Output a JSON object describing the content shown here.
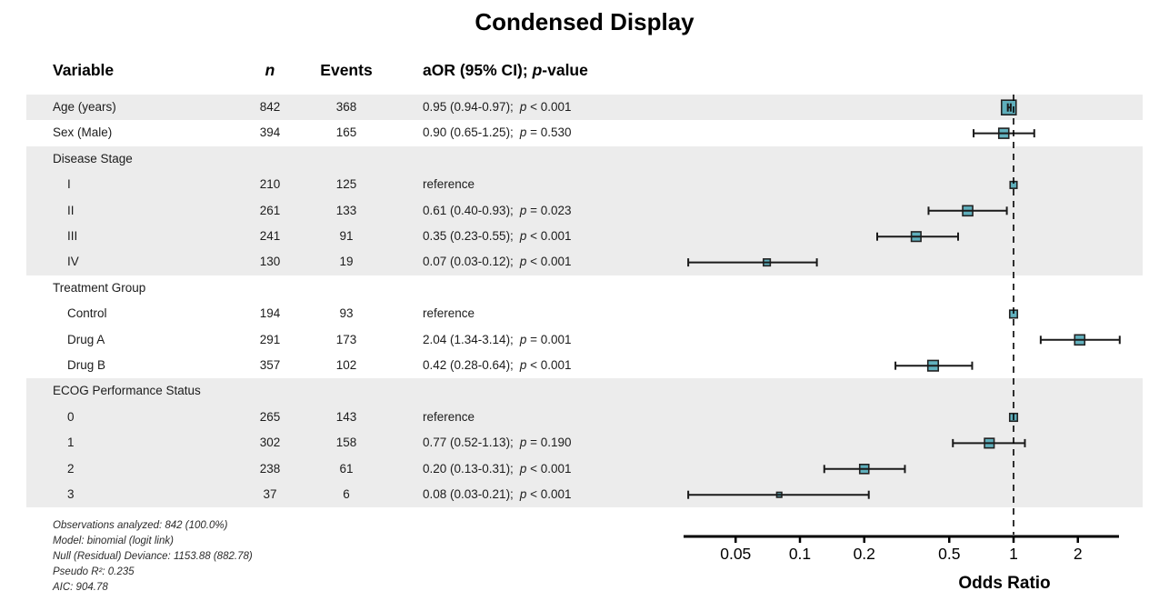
{
  "title": "Condensed Display",
  "header": {
    "variable": "Variable",
    "n": "n",
    "events": "Events",
    "estimate_prefix": "aOR (95% CI); ",
    "estimate_p": "p",
    "estimate_suffix": "-value"
  },
  "axis_label": "Odds Ratio",
  "footnotes": [
    "Observations analyzed: 842 (100.0%)",
    "Model: binomial (logit link)",
    "Null (Residual) Deviance: 1153.88 (882.78)",
    "Pseudo R²: 0.235",
    "AIC: 904.78"
  ],
  "colors": {
    "marker_fill": "#47a4b4",
    "marker_stroke": "#222222",
    "ci_line": "#1a1a1a",
    "band": "#ececec",
    "reference_line": "#000000",
    "axis_line": "#000000"
  },
  "chart_data": {
    "type": "forest",
    "xlabel": "Odds Ratio",
    "x_scale": "log10",
    "xlim": [
      0.028,
      3.3
    ],
    "x_ticks": [
      0.05,
      0.1,
      0.2,
      0.5,
      1,
      2
    ],
    "x_tick_labels": [
      "0.05",
      "0.1",
      "0.2",
      "0.5",
      "1",
      "2"
    ],
    "reference_line": 1,
    "grid": false,
    "rows": [
      {
        "label": "Age (years)",
        "indent": 0,
        "n": "842",
        "events": "368",
        "est": "0.95 (0.94-0.97);",
        "p_op": "<",
        "p_value": "0.001",
        "or": 0.95,
        "lo": 0.94,
        "hi": 0.97,
        "size": 16,
        "band": true
      },
      {
        "label": "Sex (Male)",
        "indent": 0,
        "n": "394",
        "events": "165",
        "est": "0.90 (0.65-1.25);",
        "p_op": "=",
        "p_value": "0.530",
        "or": 0.9,
        "lo": 0.65,
        "hi": 1.25,
        "size": 11,
        "band": false
      },
      {
        "label": "Disease Stage",
        "indent": 0,
        "group": true,
        "band": true
      },
      {
        "label": "I",
        "indent": 1,
        "n": "210",
        "events": "125",
        "est": "reference",
        "or": 1,
        "size": 7.5,
        "band": true,
        "reference": true
      },
      {
        "label": "II",
        "indent": 1,
        "n": "261",
        "events": "133",
        "est": "0.61 (0.40-0.93);",
        "p_op": "=",
        "p_value": "0.023",
        "or": 0.61,
        "lo": 0.4,
        "hi": 0.93,
        "size": 11,
        "band": true
      },
      {
        "label": "III",
        "indent": 1,
        "n": "241",
        "events": "91",
        "est": "0.35 (0.23-0.55);",
        "p_op": "<",
        "p_value": "0.001",
        "or": 0.35,
        "lo": 0.23,
        "hi": 0.55,
        "size": 10.5,
        "band": true
      },
      {
        "label": "IV",
        "indent": 1,
        "n": "130",
        "events": "19",
        "est": "0.07 (0.03-0.12);",
        "p_op": "<",
        "p_value": "0.001",
        "or": 0.07,
        "lo": 0.03,
        "hi": 0.12,
        "size": 7.5,
        "band": true
      },
      {
        "label": "Treatment Group",
        "indent": 0,
        "group": true,
        "band": false
      },
      {
        "label": "Control",
        "indent": 1,
        "n": "194",
        "events": "93",
        "est": "reference",
        "or": 1,
        "size": 8.5,
        "band": false,
        "reference": true
      },
      {
        "label": "Drug A",
        "indent": 1,
        "n": "291",
        "events": "173",
        "est": "2.04 (1.34-3.14);",
        "p_op": "=",
        "p_value": "0.001",
        "or": 2.04,
        "lo": 1.34,
        "hi": 3.14,
        "size": 11,
        "band": false
      },
      {
        "label": "Drug B",
        "indent": 1,
        "n": "357",
        "events": "102",
        "est": "0.42 (0.28-0.64);",
        "p_op": "<",
        "p_value": "0.001",
        "or": 0.42,
        "lo": 0.28,
        "hi": 0.64,
        "size": 11.5,
        "band": false
      },
      {
        "label": "ECOG Performance Status",
        "indent": 0,
        "group": true,
        "band": true
      },
      {
        "label": "0",
        "indent": 1,
        "n": "265",
        "events": "143",
        "est": "reference",
        "or": 1,
        "size": 8.5,
        "band": true,
        "reference": true
      },
      {
        "label": "1",
        "indent": 1,
        "n": "302",
        "events": "158",
        "est": "0.77 (0.52-1.13);",
        "p_op": "=",
        "p_value": "0.190",
        "or": 0.77,
        "lo": 0.52,
        "hi": 1.13,
        "size": 10.5,
        "band": true
      },
      {
        "label": "2",
        "indent": 1,
        "n": "238",
        "events": "61",
        "est": "0.20 (0.13-0.31);",
        "p_op": "<",
        "p_value": "0.001",
        "or": 0.2,
        "lo": 0.13,
        "hi": 0.31,
        "size": 10,
        "band": true
      },
      {
        "label": "3",
        "indent": 1,
        "n": "37",
        "events": "6",
        "est": "0.08 (0.03-0.21);",
        "p_op": "<",
        "p_value": "0.001",
        "or": 0.08,
        "lo": 0.03,
        "hi": 0.21,
        "size": 5.5,
        "band": true
      }
    ]
  }
}
